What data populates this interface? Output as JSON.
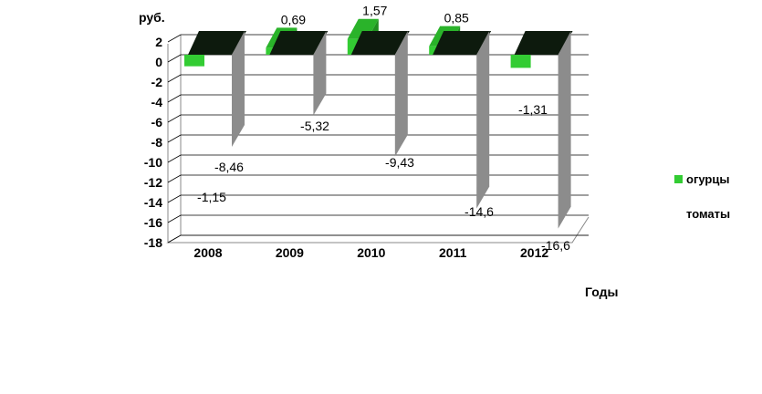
{
  "chart_data": {
    "type": "bar",
    "ylabel": "руб.",
    "xlabel": "Годы",
    "categories": [
      "2008",
      "2009",
      "2010",
      "2011",
      "2012"
    ],
    "ylim": [
      -18,
      2
    ],
    "yticks": [
      2,
      0,
      -2,
      -4,
      -6,
      -8,
      -10,
      -12,
      -14,
      -16,
      -18
    ],
    "grid": true,
    "legend_position": "right",
    "series": [
      {
        "name": "огурцы",
        "values": [
          -1.15,
          0.69,
          1.57,
          0.85,
          -1.31
        ],
        "labels": [
          "-1,15",
          "0,69",
          "1,57",
          "0,85",
          "-1,31"
        ],
        "color": "#33cc33"
      },
      {
        "name": "томаты",
        "values": [
          -8.46,
          -5.32,
          -9.43,
          -14.6,
          -16.6
        ],
        "labels": [
          "-8,46",
          "-5,32",
          "-9,43",
          "-14,6",
          "-16,6"
        ],
        "color": "#1a1a1a"
      }
    ]
  }
}
